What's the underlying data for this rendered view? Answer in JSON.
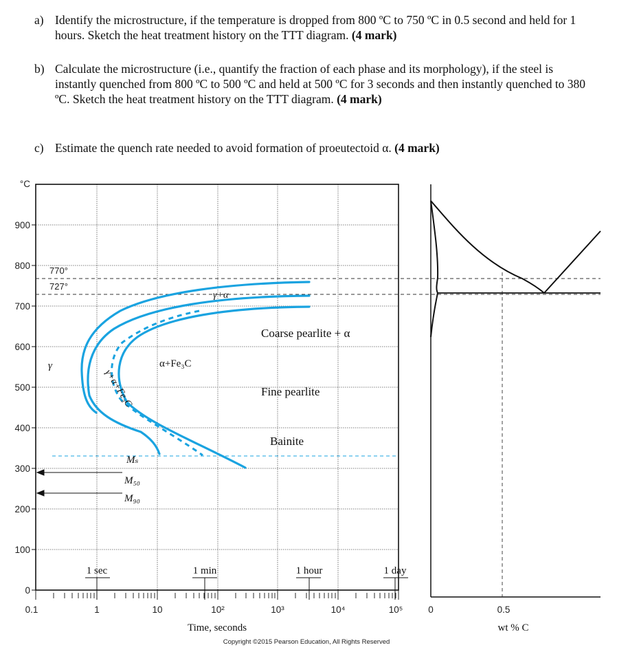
{
  "questions": [
    {
      "label": "a)",
      "text": "Identify the microstructure, if the temperature is dropped from 800 ºC to 750 ºC in 0.5 second and held for 1 hours. Sketch the heat treatment history on the TTT diagram.",
      "marks": "(4 mark)"
    },
    {
      "label": "b)",
      "text": "Calculate the microstructure (i.e., quantify the fraction of each phase and its morphology), if the steel is instantly quenched from 800 ºC to 500 ºC and held at 500 ºC for 3 seconds and then instantly quenched to 380 ºC. Sketch the heat treatment history on the TTT diagram.",
      "marks": "(4 mark)"
    },
    {
      "label": "c)",
      "text": "Estimate the quench rate needed to avoid formation of proeutectoid α.",
      "marks": "(4 mark)"
    }
  ],
  "diagram": {
    "y_unit": "°C",
    "y_ticks": [
      "900",
      "800",
      "700",
      "600",
      "500",
      "400",
      "300",
      "200",
      "100",
      "0"
    ],
    "x_ticks": [
      "0.1",
      "1",
      "10",
      "10²",
      "10³",
      "10⁴",
      "10⁵"
    ],
    "x_label": "Time, seconds",
    "time_marks": [
      "1 sec",
      "1 min",
      "1 hour",
      "1 day"
    ],
    "temps": [
      "770°",
      "727°"
    ],
    "region_labels": {
      "gamma": "γ",
      "gamma_alpha": "γ+α",
      "gamma_alpha_fe3c": "γ+α+Fe₃C",
      "alpha_fe3c": "α+Fe₃C",
      "coarse": "Coarse pearlite + α",
      "fine": "Fine pearlite",
      "bainite": "Bainite",
      "ms": "Mₛ",
      "m50": "M₅₀",
      "m90": "M₉₀"
    },
    "phase_x_ticks": [
      "0",
      "0.5"
    ],
    "phase_x_label": "wt % C",
    "copyright": "Copyright ©2015 Pearson Education, All Rights Reserved"
  },
  "colors": {
    "curve": "#1aa3e0",
    "axis": "#111111",
    "grid": "#444444"
  }
}
